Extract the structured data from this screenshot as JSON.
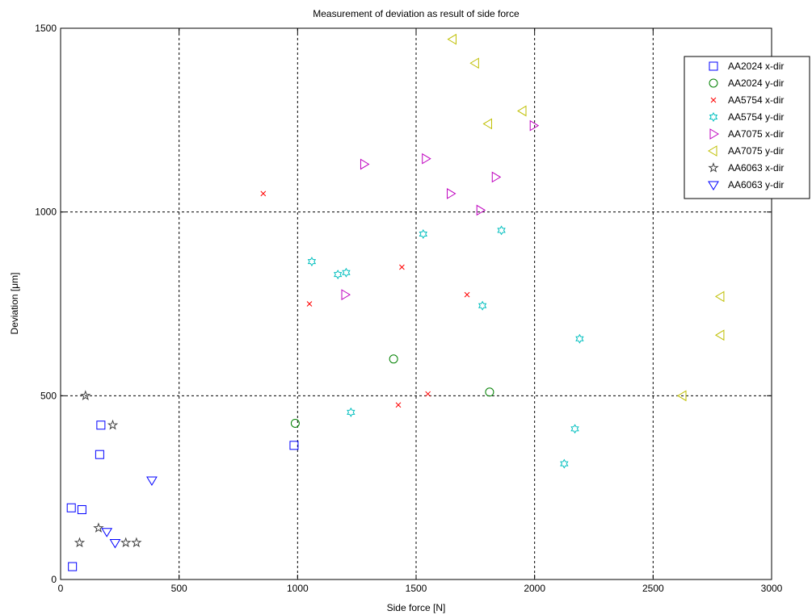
{
  "chart_data": {
    "type": "scatter",
    "title": "Measurement of deviation as result of side force",
    "xlabel": "Side force [N]",
    "ylabel": "Deviation [μm]",
    "xlim": [
      0,
      3000
    ],
    "ylim": [
      0,
      1500
    ],
    "x_ticks": [
      0,
      500,
      1000,
      1500,
      2000,
      2500,
      3000
    ],
    "y_ticks": [
      0,
      500,
      1000,
      1500
    ],
    "grid": true,
    "legend_position": "top-right",
    "series": [
      {
        "name": "AA2024 x-dir",
        "color": "#0000ff",
        "marker": "square",
        "points": [
          [
            45,
            195
          ],
          [
            90,
            190
          ],
          [
            170,
            420
          ],
          [
            165,
            340
          ],
          [
            50,
            35
          ],
          [
            985,
            365
          ]
        ]
      },
      {
        "name": "AA2024 y-dir",
        "color": "#008000",
        "marker": "circle",
        "points": [
          [
            990,
            425
          ],
          [
            1405,
            600
          ],
          [
            1810,
            510
          ]
        ]
      },
      {
        "name": "AA5754 x-dir",
        "color": "#ff0000",
        "marker": "x",
        "points": [
          [
            855,
            1050
          ],
          [
            1050,
            750
          ],
          [
            1440,
            850
          ],
          [
            1425,
            475
          ],
          [
            1550,
            505
          ],
          [
            1715,
            775
          ]
        ]
      },
      {
        "name": "AA5754 y-dir",
        "color": "#00bfbf",
        "marker": "hexagram",
        "points": [
          [
            1060,
            865
          ],
          [
            1170,
            830
          ],
          [
            1205,
            835
          ],
          [
            1225,
            455
          ],
          [
            1530,
            940
          ],
          [
            1780,
            745
          ],
          [
            1860,
            950
          ],
          [
            2125,
            315
          ],
          [
            2170,
            410
          ],
          [
            2190,
            655
          ]
        ]
      },
      {
        "name": "AA7075 x-dir",
        "color": "#bf00bf",
        "marker": "triangle-right",
        "points": [
          [
            1280,
            1130
          ],
          [
            1200,
            775
          ],
          [
            1540,
            1145
          ],
          [
            1645,
            1050
          ],
          [
            1770,
            1005
          ],
          [
            1835,
            1095
          ],
          [
            1995,
            1235
          ]
        ]
      },
      {
        "name": "AA7075 y-dir",
        "color": "#bfbf00",
        "marker": "triangle-left",
        "points": [
          [
            1655,
            1470
          ],
          [
            1750,
            1405
          ],
          [
            1805,
            1240
          ],
          [
            1950,
            1275
          ],
          [
            2625,
            500
          ],
          [
            2785,
            770
          ],
          [
            2785,
            665
          ]
        ]
      },
      {
        "name": "AA6063 x-dir",
        "color": "#404040",
        "marker": "pentagram",
        "points": [
          [
            105,
            500
          ],
          [
            220,
            420
          ],
          [
            80,
            100
          ],
          [
            160,
            140
          ],
          [
            275,
            100
          ],
          [
            320,
            100
          ]
        ]
      },
      {
        "name": "AA6063 y-dir",
        "color": "#0000ff",
        "marker": "triangle-down",
        "points": [
          [
            385,
            270
          ],
          [
            195,
            130
          ],
          [
            230,
            100
          ]
        ]
      }
    ]
  }
}
